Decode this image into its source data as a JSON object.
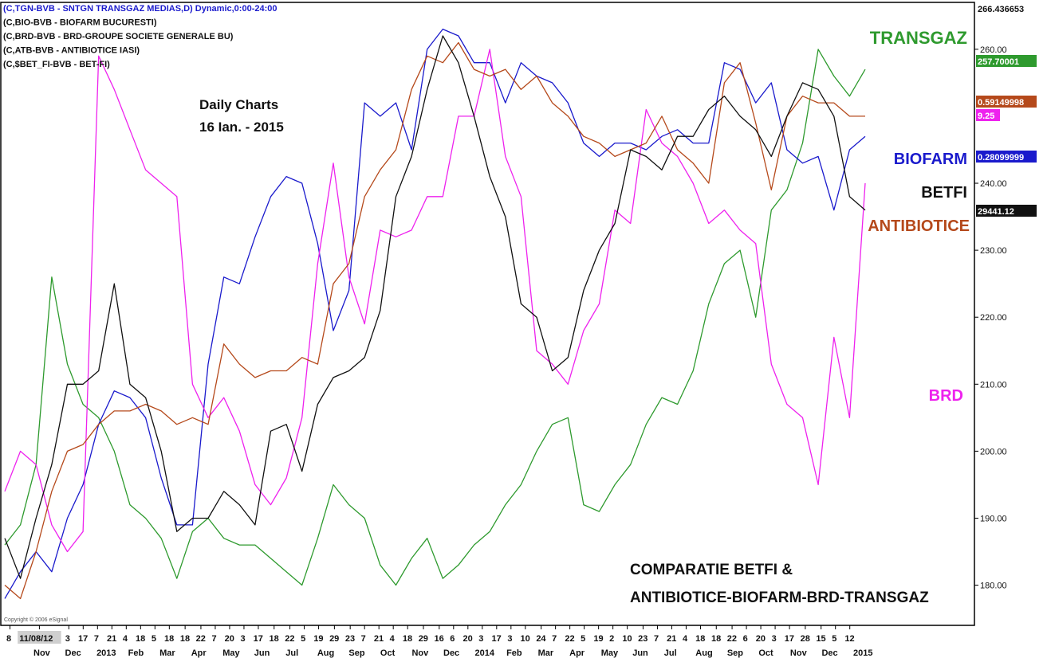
{
  "chart_data": {
    "type": "line",
    "header_lines": [
      {
        "text": "(C,TGN-BVB - SNTGN TRANSGAZ MEDIAS,D) Dynamic,0:00-24:00",
        "color": "#1a1acc"
      },
      {
        "text": "(C,BIO-BVB - BIOFARM BUCURESTI)",
        "color": "#111111"
      },
      {
        "text": "(C,BRD-BVB - BRD-GROUPE SOCIETE GENERALE BU)",
        "color": "#111111"
      },
      {
        "text": "(C,ATB-BVB - ANTIBIOTICE IASI)",
        "color": "#111111"
      },
      {
        "text": "(C,$BET_FI-BVB - BET-FI)",
        "color": "#111111"
      }
    ],
    "subtitle_lines": [
      "Daily Charts",
      "16 Ian. -  2015"
    ],
    "footer_lines": [
      "COMPARATIE BETFI  &",
      "ANTIBIOTICE-BIOFARM-BRD-TRANSGAZ"
    ],
    "copyright": "Copyright © 2006 eSignal",
    "yaxis": {
      "top_label": "266.436653",
      "ticks": [
        260,
        240,
        230,
        220,
        210,
        200,
        190,
        180
      ],
      "tick_labels": [
        "260.00",
        "240.00",
        "230.00",
        "220.00",
        "210.00",
        "200.00",
        "190.00",
        "180.00"
      ],
      "ylim": [
        174,
        267
      ]
    },
    "xaxis": {
      "day_labels": [
        "8",
        "11/08/12",
        "3",
        "17",
        "7",
        "21",
        "4",
        "18",
        "5",
        "18",
        "18",
        "22",
        "7",
        "20",
        "3",
        "17",
        "18",
        "22",
        "5",
        "19",
        "29",
        "23",
        "7",
        "21",
        "4",
        "18",
        "29",
        "16",
        "6",
        "20",
        "3",
        "17",
        "3",
        "10",
        "24",
        "7",
        "22",
        "5",
        "19",
        "2",
        "10",
        "23",
        "7",
        "21",
        "4",
        "18",
        "18",
        "22",
        "6",
        "20",
        "3",
        "17",
        "28",
        "15",
        "5",
        "12"
      ],
      "month_labels": [
        "Nov",
        "Dec",
        "2013",
        "Feb",
        "Mar",
        "Apr",
        "May",
        "Jun",
        "Jul",
        "Aug",
        "Sep",
        "Oct",
        "Nov",
        "Dec",
        "2014",
        "Feb",
        "Mar",
        "Apr",
        "May",
        "Jun",
        "Jul",
        "Aug",
        "Sep",
        "Oct",
        "Nov",
        "Dec",
        "2015"
      ],
      "n_points": 56
    },
    "series": [
      {
        "name": "TRANSGAZ",
        "color": "#2e9a2e",
        "last_label": "257.70001",
        "values": [
          186,
          189,
          198,
          226,
          213,
          207,
          205,
          200,
          192,
          190,
          187,
          181,
          188,
          190,
          187,
          186,
          186,
          184,
          182,
          180,
          187,
          195,
          192,
          190,
          183,
          180,
          184,
          187,
          181,
          183,
          186,
          188,
          192,
          195,
          200,
          204,
          205,
          192,
          191,
          195,
          198,
          204,
          208,
          207,
          212,
          222,
          228,
          230,
          220,
          236,
          239,
          246,
          260,
          256,
          253,
          257
        ]
      },
      {
        "name": "BIOFARM",
        "color": "#1a1acc",
        "last_label": "0.28099999",
        "values": [
          178,
          182,
          185,
          182,
          190,
          195,
          204,
          209,
          208,
          205,
          196,
          189,
          189,
          213,
          226,
          225,
          232,
          238,
          241,
          240,
          231,
          218,
          224,
          252,
          250,
          252,
          245,
          260,
          263,
          262,
          258,
          258,
          252,
          258,
          256,
          255,
          252,
          246,
          244,
          246,
          246,
          245,
          247,
          248,
          246,
          246,
          258,
          257,
          252,
          255,
          245,
          243,
          244,
          236,
          245,
          247
        ]
      },
      {
        "name": "BRD",
        "color": "#ee22ee",
        "last_label": "9.25",
        "values": [
          194,
          200,
          198,
          189,
          185,
          188,
          259,
          254,
          248,
          242,
          240,
          238,
          210,
          205,
          208,
          203,
          195,
          192,
          196,
          205,
          228,
          243,
          226,
          219,
          233,
          232,
          233,
          238,
          238,
          250,
          250,
          260,
          244,
          238,
          215,
          213,
          210,
          218,
          222,
          236,
          234,
          251,
          246,
          244,
          240,
          234,
          236,
          233,
          231,
          213,
          207,
          205,
          195,
          217,
          205,
          240
        ]
      },
      {
        "name": "ANTIBIOTICE",
        "color": "#b5491b",
        "last_label": "0.59149998",
        "values": [
          180,
          178,
          185,
          194,
          200,
          201,
          204,
          206,
          206,
          207,
          206,
          204,
          205,
          204,
          216,
          213,
          211,
          212,
          212,
          214,
          213,
          225,
          228,
          238,
          242,
          245,
          254,
          259,
          258,
          261,
          257,
          256,
          257,
          254,
          256,
          252,
          250,
          247,
          246,
          244,
          245,
          246,
          250,
          245,
          243,
          240,
          255,
          258,
          249,
          239,
          250,
          253,
          252,
          252,
          250,
          250
        ]
      },
      {
        "name": "BETFI",
        "color": "#111111",
        "last_label": "29441.12",
        "values": [
          187,
          181,
          190,
          198,
          210,
          210,
          212,
          225,
          210,
          208,
          200,
          188,
          190,
          190,
          194,
          192,
          189,
          203,
          204,
          197,
          207,
          211,
          212,
          214,
          221,
          238,
          244,
          254,
          262,
          258,
          250,
          241,
          235,
          222,
          220,
          212,
          214,
          224,
          230,
          234,
          245,
          244,
          242,
          247,
          247,
          251,
          253,
          250,
          248,
          244,
          250,
          255,
          254,
          250,
          238,
          236
        ]
      }
    ],
    "legend_placement": "right",
    "grid": false
  }
}
